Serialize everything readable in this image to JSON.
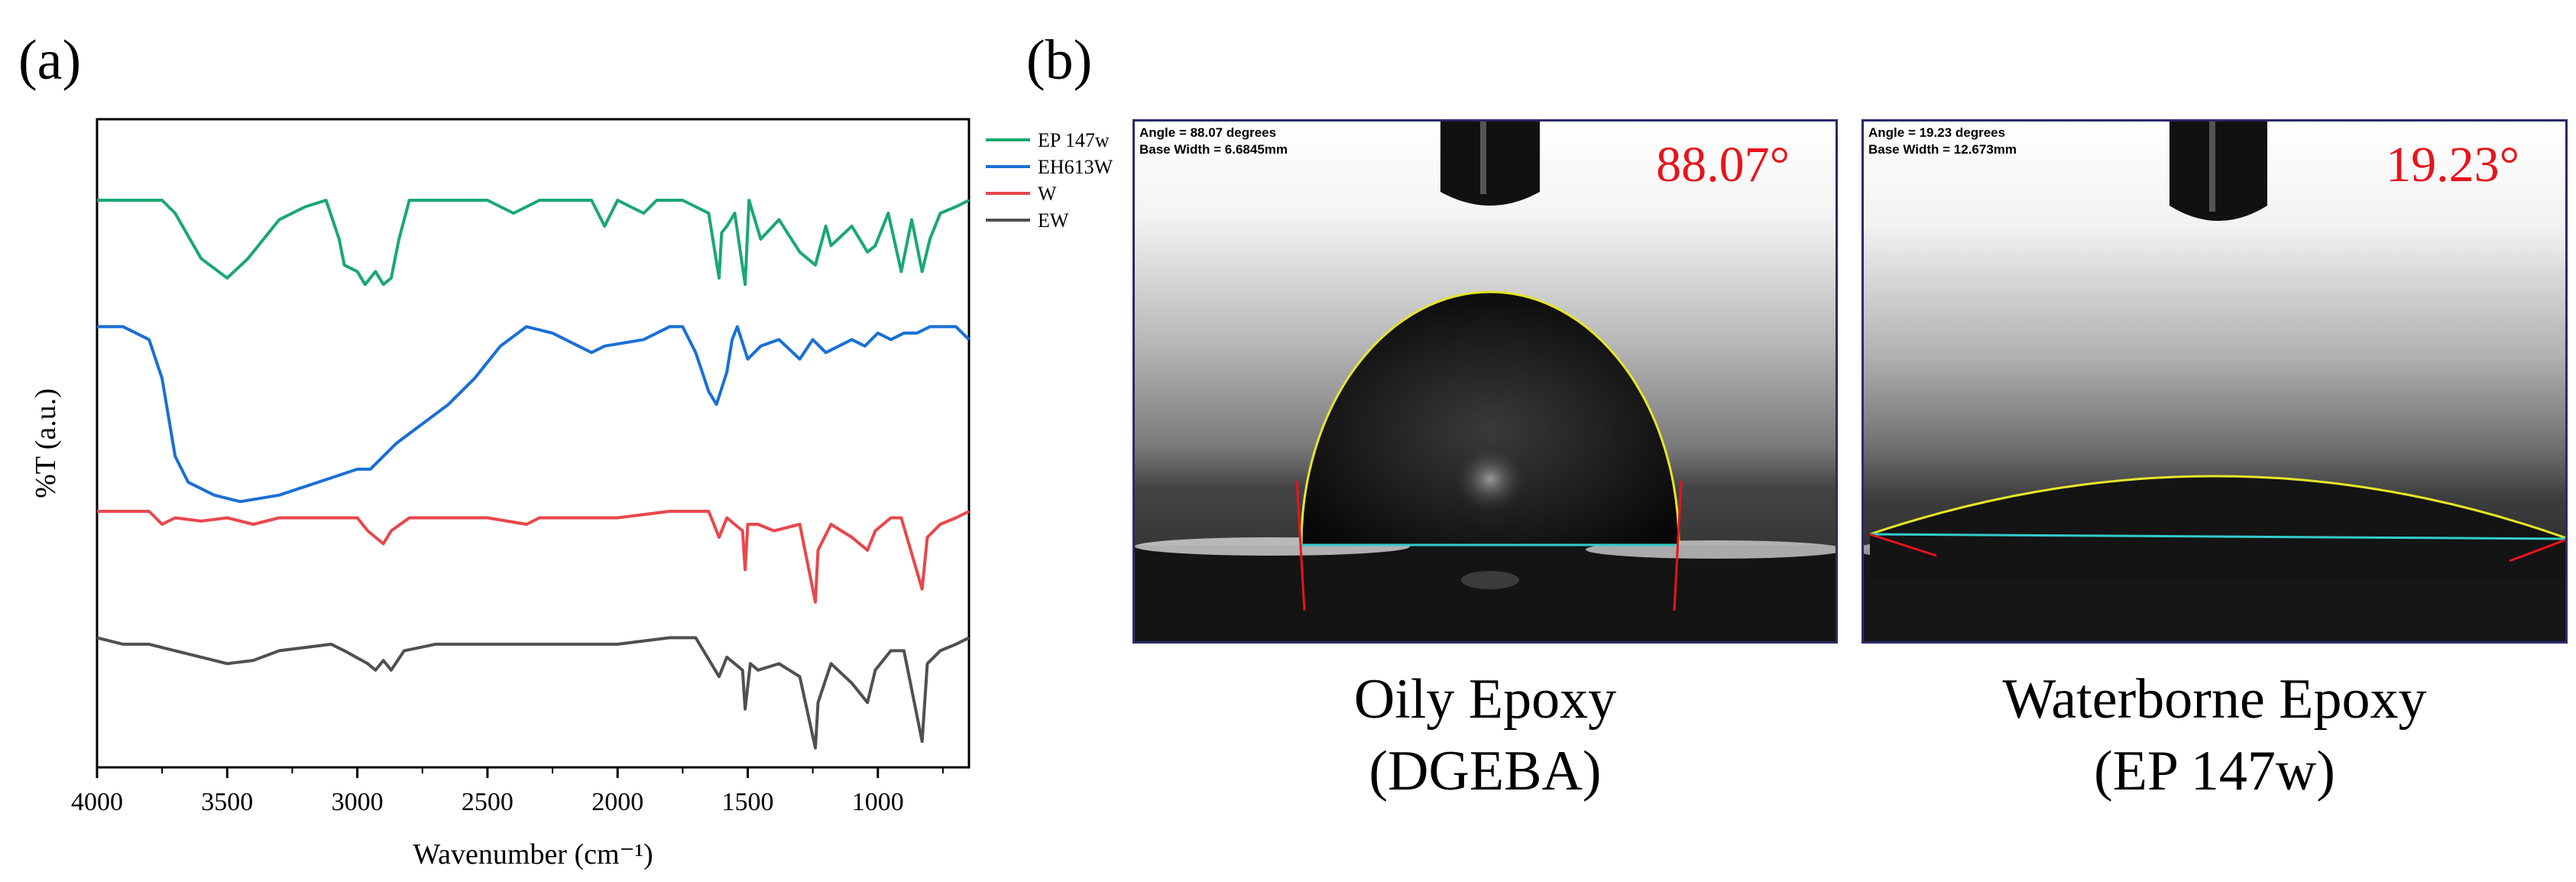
{
  "panels": {
    "a": "(a)",
    "b": "(b)"
  },
  "chart_data": {
    "type": "line",
    "title": "",
    "xlabel": "Wavenumber (cm⁻¹)",
    "ylabel": "%T (a.u.)",
    "xlim": [
      4000,
      650
    ],
    "x_reversed": true,
    "xticks": [
      4000,
      3500,
      3000,
      2500,
      2000,
      1500,
      1000
    ],
    "xtick_labels": [
      "4000",
      "3500",
      "3000",
      "2500",
      "2000",
      "1500",
      "1000"
    ],
    "y_ticks_shown": false,
    "legend_position": "right",
    "series": [
      {
        "name": "EP 147w",
        "color": "#1aa870",
        "offset": 0.875,
        "points": [
          [
            4000,
            0.0
          ],
          [
            3900,
            0.0
          ],
          [
            3750,
            0.0
          ],
          [
            3700,
            -0.02
          ],
          [
            3600,
            -0.09
          ],
          [
            3500,
            -0.12
          ],
          [
            3420,
            -0.09
          ],
          [
            3300,
            -0.03
          ],
          [
            3200,
            -0.01
          ],
          [
            3120,
            0.0
          ],
          [
            3070,
            -0.06
          ],
          [
            3050,
            -0.1
          ],
          [
            3000,
            -0.11
          ],
          [
            2970,
            -0.13
          ],
          [
            2930,
            -0.11
          ],
          [
            2900,
            -0.13
          ],
          [
            2870,
            -0.12
          ],
          [
            2840,
            -0.06
          ],
          [
            2800,
            0.0
          ],
          [
            2700,
            0.0
          ],
          [
            2500,
            0.0
          ],
          [
            2400,
            -0.02
          ],
          [
            2300,
            0.0
          ],
          [
            2100,
            0.0
          ],
          [
            2050,
            -0.04
          ],
          [
            2000,
            0.0
          ],
          [
            1900,
            -0.02
          ],
          [
            1850,
            0.0
          ],
          [
            1750,
            0.0
          ],
          [
            1650,
            -0.02
          ],
          [
            1610,
            -0.12
          ],
          [
            1600,
            -0.05
          ],
          [
            1580,
            -0.04
          ],
          [
            1550,
            -0.02
          ],
          [
            1510,
            -0.13
          ],
          [
            1495,
            0.0
          ],
          [
            1450,
            -0.06
          ],
          [
            1380,
            -0.03
          ],
          [
            1300,
            -0.08
          ],
          [
            1240,
            -0.1
          ],
          [
            1200,
            -0.04
          ],
          [
            1180,
            -0.07
          ],
          [
            1100,
            -0.04
          ],
          [
            1040,
            -0.08
          ],
          [
            1010,
            -0.07
          ],
          [
            960,
            -0.02
          ],
          [
            910,
            -0.11
          ],
          [
            870,
            -0.03
          ],
          [
            830,
            -0.11
          ],
          [
            800,
            -0.06
          ],
          [
            760,
            -0.02
          ],
          [
            700,
            -0.01
          ],
          [
            650,
            0.0
          ]
        ]
      },
      {
        "name": "EH613W",
        "color": "#1a6fd6",
        "offset": 0.68,
        "points": [
          [
            4000,
            0.0
          ],
          [
            3900,
            0.0
          ],
          [
            3800,
            -0.02
          ],
          [
            3750,
            -0.08
          ],
          [
            3700,
            -0.2
          ],
          [
            3650,
            -0.24
          ],
          [
            3550,
            -0.26
          ],
          [
            3450,
            -0.27
          ],
          [
            3300,
            -0.26
          ],
          [
            3150,
            -0.24
          ],
          [
            3000,
            -0.22
          ],
          [
            2950,
            -0.22
          ],
          [
            2850,
            -0.18
          ],
          [
            2750,
            -0.15
          ],
          [
            2650,
            -0.12
          ],
          [
            2550,
            -0.08
          ],
          [
            2450,
            -0.03
          ],
          [
            2350,
            0.0
          ],
          [
            2250,
            -0.01
          ],
          [
            2100,
            -0.04
          ],
          [
            2050,
            -0.03
          ],
          [
            1900,
            -0.02
          ],
          [
            1800,
            0.0
          ],
          [
            1750,
            0.0
          ],
          [
            1700,
            -0.04
          ],
          [
            1650,
            -0.1
          ],
          [
            1620,
            -0.12
          ],
          [
            1580,
            -0.07
          ],
          [
            1560,
            -0.02
          ],
          [
            1540,
            0.0
          ],
          [
            1500,
            -0.05
          ],
          [
            1450,
            -0.03
          ],
          [
            1380,
            -0.02
          ],
          [
            1300,
            -0.05
          ],
          [
            1250,
            -0.02
          ],
          [
            1200,
            -0.04
          ],
          [
            1100,
            -0.02
          ],
          [
            1050,
            -0.03
          ],
          [
            1000,
            -0.01
          ],
          [
            950,
            -0.02
          ],
          [
            900,
            -0.01
          ],
          [
            850,
            -0.01
          ],
          [
            800,
            0.0
          ],
          [
            750,
            0.0
          ],
          [
            700,
            0.0
          ],
          [
            650,
            -0.02
          ]
        ]
      },
      {
        "name": "W",
        "color": "#e8474c",
        "offset": 0.395,
        "points": [
          [
            4000,
            0.0
          ],
          [
            3800,
            0.0
          ],
          [
            3750,
            -0.02
          ],
          [
            3700,
            -0.01
          ],
          [
            3600,
            -0.015
          ],
          [
            3500,
            -0.01
          ],
          [
            3400,
            -0.02
          ],
          [
            3300,
            -0.01
          ],
          [
            3100,
            -0.01
          ],
          [
            3000,
            -0.01
          ],
          [
            2960,
            -0.03
          ],
          [
            2930,
            -0.04
          ],
          [
            2900,
            -0.05
          ],
          [
            2870,
            -0.03
          ],
          [
            2800,
            -0.01
          ],
          [
            2500,
            -0.01
          ],
          [
            2350,
            -0.02
          ],
          [
            2300,
            -0.01
          ],
          [
            2000,
            -0.01
          ],
          [
            1800,
            0.0
          ],
          [
            1650,
            0.0
          ],
          [
            1610,
            -0.04
          ],
          [
            1580,
            -0.01
          ],
          [
            1520,
            -0.03
          ],
          [
            1510,
            -0.09
          ],
          [
            1500,
            -0.02
          ],
          [
            1460,
            -0.02
          ],
          [
            1400,
            -0.03
          ],
          [
            1300,
            -0.02
          ],
          [
            1240,
            -0.14
          ],
          [
            1230,
            -0.06
          ],
          [
            1180,
            -0.02
          ],
          [
            1100,
            -0.04
          ],
          [
            1040,
            -0.06
          ],
          [
            1010,
            -0.03
          ],
          [
            950,
            -0.01
          ],
          [
            910,
            -0.01
          ],
          [
            830,
            -0.12
          ],
          [
            810,
            -0.04
          ],
          [
            760,
            -0.02
          ],
          [
            700,
            -0.01
          ],
          [
            650,
            0.0
          ]
        ]
      },
      {
        "name": "EW",
        "color": "#505050",
        "offset": 0.2,
        "points": [
          [
            4000,
            0.0
          ],
          [
            3900,
            -0.01
          ],
          [
            3800,
            -0.01
          ],
          [
            3700,
            -0.02
          ],
          [
            3600,
            -0.03
          ],
          [
            3500,
            -0.04
          ],
          [
            3400,
            -0.035
          ],
          [
            3300,
            -0.02
          ],
          [
            3200,
            -0.015
          ],
          [
            3100,
            -0.01
          ],
          [
            3050,
            -0.02
          ],
          [
            2960,
            -0.04
          ],
          [
            2930,
            -0.05
          ],
          [
            2900,
            -0.035
          ],
          [
            2870,
            -0.05
          ],
          [
            2820,
            -0.02
          ],
          [
            2700,
            -0.01
          ],
          [
            2400,
            -0.01
          ],
          [
            2300,
            -0.01
          ],
          [
            2000,
            -0.01
          ],
          [
            1800,
            0.0
          ],
          [
            1700,
            0.0
          ],
          [
            1610,
            -0.06
          ],
          [
            1580,
            -0.03
          ],
          [
            1520,
            -0.05
          ],
          [
            1510,
            -0.11
          ],
          [
            1490,
            -0.04
          ],
          [
            1460,
            -0.05
          ],
          [
            1380,
            -0.04
          ],
          [
            1300,
            -0.06
          ],
          [
            1240,
            -0.17
          ],
          [
            1230,
            -0.1
          ],
          [
            1180,
            -0.04
          ],
          [
            1100,
            -0.07
          ],
          [
            1040,
            -0.1
          ],
          [
            1010,
            -0.05
          ],
          [
            950,
            -0.02
          ],
          [
            900,
            -0.02
          ],
          [
            830,
            -0.16
          ],
          [
            810,
            -0.04
          ],
          [
            760,
            -0.02
          ],
          [
            700,
            -0.01
          ],
          [
            650,
            0.0
          ]
        ]
      }
    ]
  },
  "contact_angle": {
    "left": {
      "angle_line": "Angle = 88.07 degrees",
      "width_line": "Base Width = 6.6845mm",
      "angle_display": "88.07°",
      "angle_value": 88.07,
      "caption_line1": "Oily Epoxy",
      "caption_line2": "(DGEBA)"
    },
    "right": {
      "angle_line": "Angle = 19.23 degrees",
      "width_line": "Base Width = 12.673mm",
      "angle_display": "19.23°",
      "angle_value": 19.23,
      "caption_line1": "Waterborne Epoxy",
      "caption_line2": "(EP 147w)"
    }
  },
  "colors": {
    "angle_text": "#e8131b",
    "fit_curve": "#e6e62a",
    "baseline": "#33cccc",
    "tangent": "#e8131b",
    "frame": "#2a2a6a"
  }
}
